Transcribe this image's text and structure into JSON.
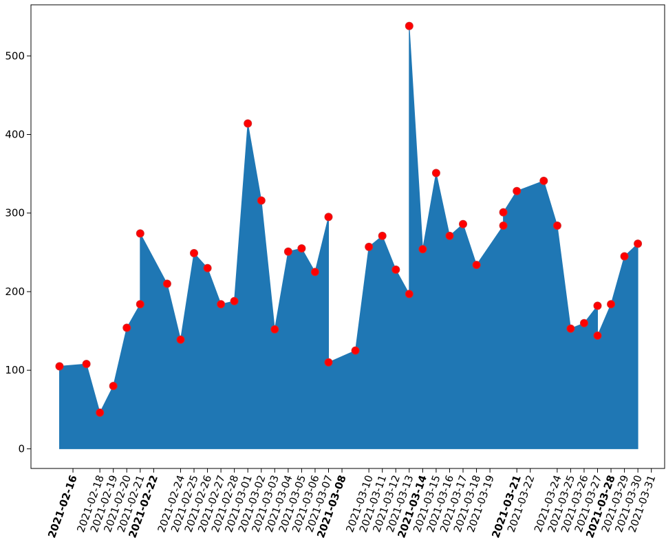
{
  "chart_data": {
    "type": "area",
    "title": "",
    "xlabel": "",
    "ylabel": "",
    "fill_color": "#1f77b4",
    "marker_color": "#ff0000",
    "marker_edge_color": "#d62728",
    "ylim": [
      -25,
      565
    ],
    "y_ticks": [
      0,
      100,
      200,
      300,
      400,
      500
    ],
    "x_tick_labels": [
      "2021-02-16",
      "2021-02-18",
      "2021-02-19",
      "2021-02-20",
      "2021-02-21",
      "2021-02-22",
      "2021-02-24",
      "2021-02-25",
      "2021-02-26",
      "2021-02-27",
      "2021-02-28",
      "2021-03-01",
      "2021-03-02",
      "2021-03-03",
      "2021-03-04",
      "2021-03-05",
      "2021-03-06",
      "2021-03-07",
      "2021-03-08",
      "2021-03-10",
      "2021-03-11",
      "2021-03-12",
      "2021-03-13",
      "2021-03-14",
      "2021-03-15",
      "2021-03-16",
      "2021-03-17",
      "2021-03-18",
      "2021-03-19",
      "2021-03-21",
      "2021-03-22",
      "2021-03-24",
      "2021-03-25",
      "2021-03-26",
      "2021-03-27",
      "2021-03-28",
      "2021-03-29",
      "2021-03-30",
      "2021-03-31"
    ],
    "bold_tick_labels": [
      "2021-02-16",
      "2021-02-22",
      "2021-03-08",
      "2021-03-14",
      "2021-03-21",
      "2021-03-28"
    ],
    "points": [
      {
        "x": "2021-02-15",
        "y": 105
      },
      {
        "x": "2021-02-17",
        "y": 108
      },
      {
        "x": "2021-02-18",
        "y": 46
      },
      {
        "x": "2021-02-19",
        "y": 80
      },
      {
        "x": "2021-02-20",
        "y": 154
      },
      {
        "x": "2021-02-21",
        "y": 184
      },
      {
        "x": "2021-02-21",
        "y": 274
      },
      {
        "x": "2021-02-23",
        "y": 210
      },
      {
        "x": "2021-02-24",
        "y": 139
      },
      {
        "x": "2021-02-25",
        "y": 249
      },
      {
        "x": "2021-02-26",
        "y": 230
      },
      {
        "x": "2021-02-27",
        "y": 184
      },
      {
        "x": "2021-02-28",
        "y": 188
      },
      {
        "x": "2021-03-01",
        "y": 414
      },
      {
        "x": "2021-03-02",
        "y": 316
      },
      {
        "x": "2021-03-03",
        "y": 152
      },
      {
        "x": "2021-03-04",
        "y": 251
      },
      {
        "x": "2021-03-05",
        "y": 255
      },
      {
        "x": "2021-03-06",
        "y": 225
      },
      {
        "x": "2021-03-07",
        "y": 295
      },
      {
        "x": "2021-03-07",
        "y": 110
      },
      {
        "x": "2021-03-09",
        "y": 125
      },
      {
        "x": "2021-03-10",
        "y": 257
      },
      {
        "x": "2021-03-11",
        "y": 271
      },
      {
        "x": "2021-03-12",
        "y": 228
      },
      {
        "x": "2021-03-13",
        "y": 197
      },
      {
        "x": "2021-03-13",
        "y": 538
      },
      {
        "x": "2021-03-14",
        "y": 254
      },
      {
        "x": "2021-03-15",
        "y": 351
      },
      {
        "x": "2021-03-16",
        "y": 271
      },
      {
        "x": "2021-03-17",
        "y": 286
      },
      {
        "x": "2021-03-18",
        "y": 234
      },
      {
        "x": "2021-03-20",
        "y": 284
      },
      {
        "x": "2021-03-20",
        "y": 301
      },
      {
        "x": "2021-03-21",
        "y": 328
      },
      {
        "x": "2021-03-23",
        "y": 341
      },
      {
        "x": "2021-03-24",
        "y": 284
      },
      {
        "x": "2021-03-25",
        "y": 153
      },
      {
        "x": "2021-03-26",
        "y": 160
      },
      {
        "x": "2021-03-27",
        "y": 182
      },
      {
        "x": "2021-03-27",
        "y": 144
      },
      {
        "x": "2021-03-28",
        "y": 184
      },
      {
        "x": "2021-03-29",
        "y": 245
      },
      {
        "x": "2021-03-30",
        "y": 261
      }
    ]
  }
}
